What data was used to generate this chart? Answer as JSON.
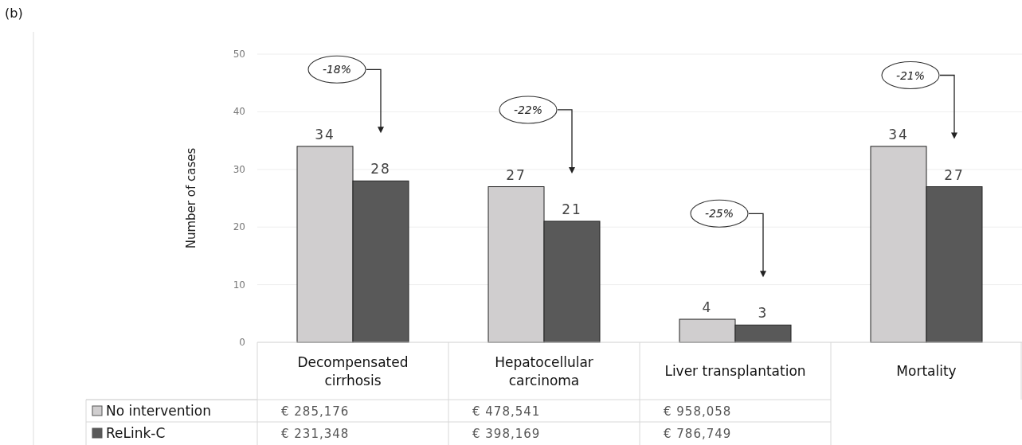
{
  "chart_data": {
    "type": "bar",
    "ylabel": "Number of cases",
    "categories": [
      "Decompensated cirrhosis",
      "Hepatocellular carcinoma",
      "Liver transplantation",
      "Mortality"
    ],
    "series": [
      {
        "name": "No intervention",
        "color": "#d0cecf",
        "values": [
          34,
          27,
          4,
          34
        ]
      },
      {
        "name": "ReLink-C",
        "color": "#595959",
        "values": [
          28,
          21,
          3,
          27
        ]
      }
    ],
    "ylim": [
      0,
      50
    ],
    "yticks": [
      0,
      10,
      20,
      30,
      40,
      50
    ],
    "grid": "y",
    "data_labels": true,
    "legend": "bottom left",
    "annotations": [
      "(b)",
      "-18%",
      "-22%",
      "-25%",
      "-21%",
      "€ 285,176",
      "€ 478,541",
      "€ 958,058",
      "€ 231,348",
      "€ 398,169",
      "€ 786,749"
    ]
  }
}
